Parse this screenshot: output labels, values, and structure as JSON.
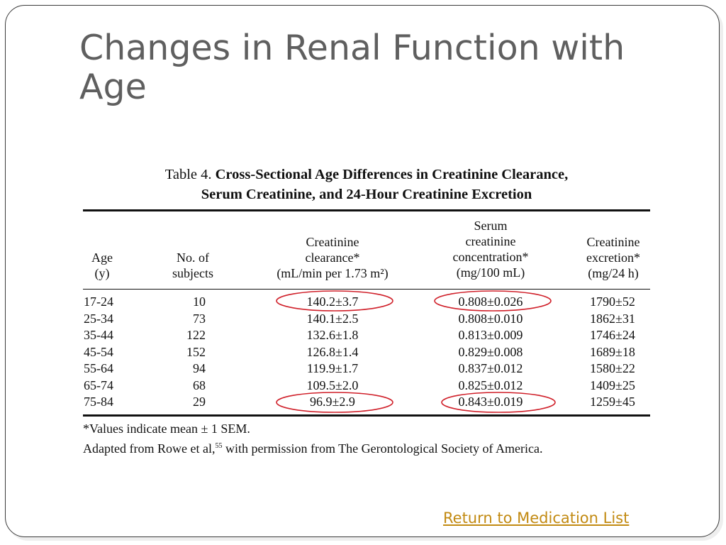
{
  "slide": {
    "title": "Changes in Renal Function with Age"
  },
  "table": {
    "caption_label": "Table 4.",
    "caption_bold_1": "Cross-Sectional Age Differences in Creatinine Clearance,",
    "caption_bold_2": "Serum Creatinine, and 24-Hour Creatinine Excretion",
    "headers": {
      "age": "Age\n(y)",
      "subjects": "No. of\nsubjects",
      "clearance": "Creatinine\nclearance*\n(mL/min per 1.73 m²)",
      "serum": "Serum\ncreatinine\nconcentration*\n(mg/100 mL)",
      "excretion": "Creatinine\nexcretion*\n(mg/24 h)"
    },
    "rows": [
      {
        "age": "17-24",
        "n": "10",
        "clearance": "140.2±3.7",
        "serum": "0.808±0.026",
        "excretion": "1790±52"
      },
      {
        "age": "25-34",
        "n": "73",
        "clearance": "140.1±2.5",
        "serum": "0.808±0.010",
        "excretion": "1862±31"
      },
      {
        "age": "35-44",
        "n": "122",
        "clearance": "132.6±1.8",
        "serum": "0.813±0.009",
        "excretion": "1746±24"
      },
      {
        "age": "45-54",
        "n": "152",
        "clearance": "126.8±1.4",
        "serum": "0.829±0.008",
        "excretion": "1689±18"
      },
      {
        "age": "55-64",
        "n": "94",
        "clearance": "119.9±1.7",
        "serum": "0.837±0.012",
        "excretion": "1580±22"
      },
      {
        "age": "65-74",
        "n": "68",
        "clearance": "109.5±2.0",
        "serum": "0.825±0.012",
        "excretion": "1409±25"
      },
      {
        "age": "75-84",
        "n": "29",
        "clearance": "96.9±2.9",
        "serum": "0.843±0.019",
        "excretion": "1259±45"
      }
    ],
    "footnote_1": "*Values indicate mean ± 1 SEM.",
    "footnote_2a": "Adapted from Rowe et al,",
    "footnote_2_sup": "55",
    "footnote_2b": " with permission from The Gerontological Society of America."
  },
  "annotations": {
    "circle_color": "#d0202a"
  },
  "link": {
    "return_label": "Return to Medication List",
    "color": "#c28a12"
  }
}
